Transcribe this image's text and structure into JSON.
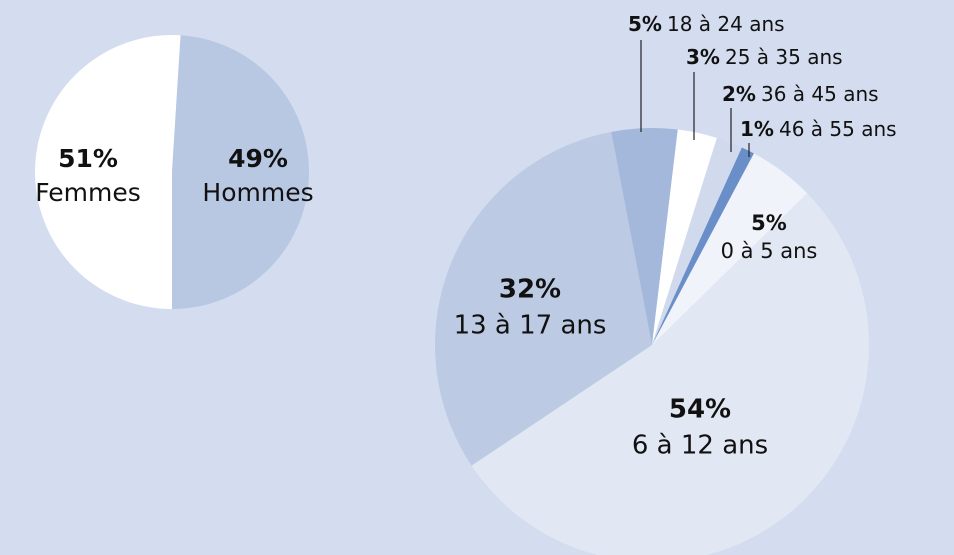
{
  "chart_data": [
    {
      "type": "pie",
      "categories": [
        "Femmes",
        "Hommes"
      ],
      "values": [
        51,
        49
      ],
      "value_labels": [
        "51%",
        "49%"
      ],
      "colors": [
        "#ffffff",
        "#b8c7e2"
      ]
    },
    {
      "type": "pie",
      "categories": [
        "0 à 5 ans",
        "6 à 12 ans",
        "13 à 17 ans",
        "18 à 24 ans",
        "25 à 35 ans",
        "36 à 45 ans",
        "46 à 55 ans"
      ],
      "values": [
        5,
        54,
        32,
        5,
        3,
        2,
        1
      ],
      "value_labels": [
        "5%",
        "54%",
        "32%",
        "5%",
        "3%",
        "2%",
        "1%"
      ],
      "colors": [
        "#f0f3fa",
        "#e2e8f3",
        "#bccbe3",
        "#a3b8da",
        "#ffffff",
        "#d0daec",
        "#6a8fc8"
      ]
    }
  ]
}
